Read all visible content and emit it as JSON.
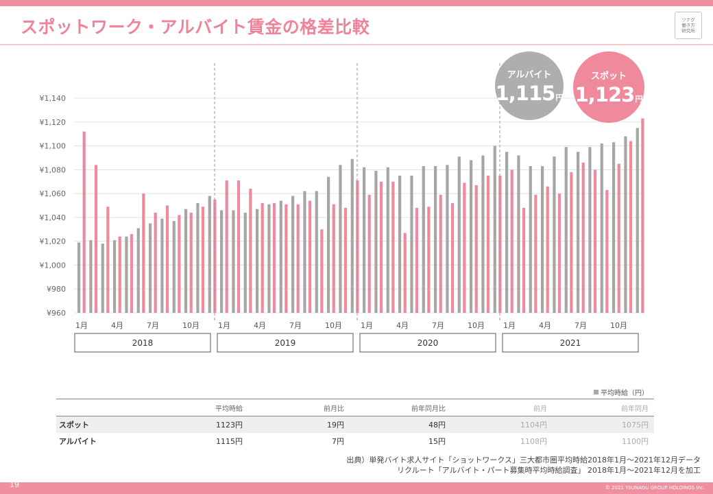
{
  "title": "スポットワーク・アルバイト賃金の格差比較",
  "logo": [
    "ツナグ",
    "働き方",
    "研究所"
  ],
  "page_number": "19",
  "copyright": "© 2021 TSUNAGU GROUP HOLDINGS Inc.",
  "bubbles": {
    "arbeit": {
      "label": "アルバイト",
      "value": "1,115",
      "unit": "円",
      "color": "#aeaeae"
    },
    "spot": {
      "label": "スポット",
      "value": "1,123",
      "unit": "円",
      "color": "#ef8a9c"
    }
  },
  "chart_data": {
    "type": "bar",
    "ylim": [
      960,
      1140
    ],
    "yticks": [
      "¥1,140",
      "¥1,120",
      "¥1,100",
      "¥1,080",
      "¥1,060",
      "¥1,040",
      "¥1,020",
      "¥1,000",
      "¥980",
      "¥960"
    ],
    "month_ticks": [
      "1月",
      "4月",
      "7月",
      "10月"
    ],
    "years": [
      "2018",
      "2019",
      "2020",
      "2021"
    ],
    "series": [
      {
        "key": "arbeit",
        "color": "#a6a6a6",
        "values": [
          1019,
          1021,
          1018,
          1021,
          1024,
          1031,
          1035,
          1039,
          1037,
          1047,
          1052,
          1058,
          1046,
          1046,
          1044,
          1047,
          1051,
          1054,
          1058,
          1062,
          1062,
          1074,
          1084,
          1089,
          1082,
          1079,
          1082,
          1075,
          1075,
          1083,
          1083,
          1084,
          1091,
          1088,
          1092,
          1100,
          1095,
          1092,
          1083,
          1083,
          1091,
          1099,
          1095,
          1099,
          1102,
          1103,
          1108,
          1115
        ]
      },
      {
        "key": "spot",
        "color": "#ef8a9c",
        "values": [
          1112,
          1084,
          1049,
          1024,
          1026,
          1060,
          1044,
          1050,
          1042,
          1044,
          1049,
          1055,
          1071,
          1071,
          1064,
          1052,
          1052,
          1051,
          1051,
          1054,
          1030,
          1051,
          1048,
          1071,
          1059,
          1070,
          1070,
          1027,
          1048,
          1049,
          1059,
          1052,
          1069,
          1067,
          1075,
          1075,
          1080,
          1048,
          1059,
          1066,
          1060,
          1078,
          1086,
          1080,
          1063,
          1085,
          1104,
          1123
        ]
      }
    ]
  },
  "table": {
    "legend": "平均時給（円）",
    "headers": [
      "",
      "平均時給",
      "前月比",
      "前年同月比",
      "前月",
      "前年同月"
    ],
    "rows": [
      {
        "label": "スポット",
        "avg": "1123円",
        "mom": "19円",
        "yoy": "48円",
        "prev_month": "1104円",
        "prev_year": "1075円"
      },
      {
        "label": "アルバイト",
        "avg": "1115円",
        "mom": "7円",
        "yoy": "15円",
        "prev_month": "1108円",
        "prev_year": "1100円"
      }
    ]
  },
  "source": [
    "出典）単発バイト求人サイト「ショットワークス」三大都市圏平均時給2018年1月～2021年12月データ",
    "リクルート「アルバイト・パート募集時平均時給調査」 2018年1月～2021年12月を加工"
  ]
}
